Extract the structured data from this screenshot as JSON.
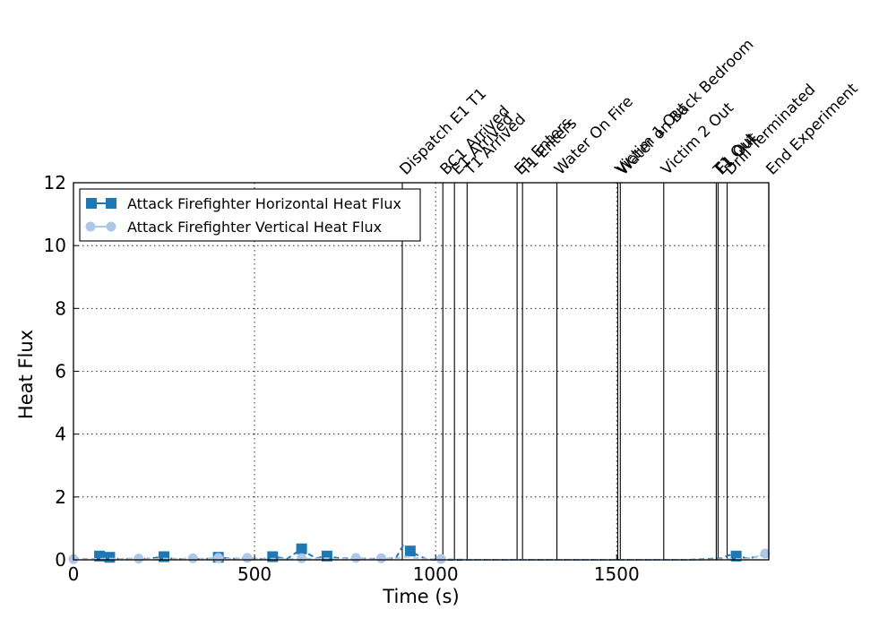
{
  "chart_data": {
    "type": "line",
    "xlabel": "Time (s)",
    "ylabel": "Heat Flux",
    "xlim": [
      0,
      1920
    ],
    "ylim": [
      0,
      12
    ],
    "xticks": [
      0,
      500,
      1000,
      1500
    ],
    "yticks": [
      0,
      2,
      4,
      6,
      8,
      10,
      12
    ],
    "grid": true,
    "legend": "top-left",
    "events": [
      {
        "label": "Dispatch E1 T1",
        "t": 908
      },
      {
        "label": "BC1 Arrived",
        "t": 1020
      },
      {
        "label": "E1 Arrived",
        "t": 1052
      },
      {
        "label": "T1 Arrived",
        "t": 1087
      },
      {
        "label": "E1 Enters",
        "t": 1225
      },
      {
        "label": "T1 Enters",
        "t": 1240
      },
      {
        "label": "Water On Fire",
        "t": 1335
      },
      {
        "label": "Victim 1 Out",
        "t": 1503
      },
      {
        "label": "Water on Back Bedroom",
        "t": 1510
      },
      {
        "label": "Victim 2 Out",
        "t": 1630
      },
      {
        "label": "T1 Out",
        "t": 1775
      },
      {
        "label": "E1 Out",
        "t": 1780
      },
      {
        "label": "Drill Terminated",
        "t": 1805
      },
      {
        "label": "End Experiment",
        "t": 1920
      }
    ],
    "series": [
      {
        "name": "Attack Firefighter Horizontal Heat Flux",
        "color": "#1f77b4",
        "marker": "square",
        "points": [
          [
            0,
            0.05
          ],
          [
            30,
            0.02
          ],
          [
            60,
            0.03
          ],
          [
            72,
            0.12
          ],
          [
            100,
            0.08
          ],
          [
            130,
            0.02
          ],
          [
            170,
            0.02
          ],
          [
            200,
            0.03
          ],
          [
            250,
            0.1
          ],
          [
            280,
            0.02
          ],
          [
            320,
            0.04
          ],
          [
            360,
            0.02
          ],
          [
            400,
            0.08
          ],
          [
            440,
            0.03
          ],
          [
            480,
            0.06
          ],
          [
            520,
            0.02
          ],
          [
            550,
            0.1
          ],
          [
            590,
            0.03
          ],
          [
            630,
            0.35
          ],
          [
            650,
            0.18
          ],
          [
            670,
            0.05
          ],
          [
            700,
            0.12
          ],
          [
            740,
            0.04
          ],
          [
            780,
            0.06
          ],
          [
            820,
            0.03
          ],
          [
            860,
            0.04
          ],
          [
            890,
            0.05
          ],
          [
            910,
            0.45
          ],
          [
            930,
            0.28
          ],
          [
            950,
            0.15
          ],
          [
            975,
            0.02
          ],
          [
            1000,
            0.0
          ],
          [
            1100,
            0.0
          ],
          [
            1200,
            0.0
          ],
          [
            1300,
            0.0
          ],
          [
            1400,
            0.0
          ],
          [
            1500,
            0.0
          ],
          [
            1600,
            0.0
          ],
          [
            1700,
            0.0
          ],
          [
            1790,
            0.05
          ],
          [
            1810,
            0.15
          ],
          [
            1830,
            0.12
          ],
          [
            1860,
            0.05
          ],
          [
            1890,
            0.1
          ],
          [
            1920,
            0.22
          ]
        ],
        "marker_every": [
          [
            72,
            0.12
          ],
          [
            100,
            0.08
          ],
          [
            250,
            0.1
          ],
          [
            400,
            0.08
          ],
          [
            550,
            0.1
          ],
          [
            630,
            0.35
          ],
          [
            700,
            0.12
          ],
          [
            930,
            0.28
          ],
          [
            1830,
            0.12
          ]
        ]
      },
      {
        "name": "Attack Firefighter Vertical Heat Flux",
        "color": "#aec7e8",
        "marker": "circle",
        "points": [
          [
            0,
            0.02
          ],
          [
            40,
            0.02
          ],
          [
            90,
            0.04
          ],
          [
            130,
            0.03
          ],
          [
            170,
            0.05
          ],
          [
            210,
            0.02
          ],
          [
            250,
            0.04
          ],
          [
            290,
            0.02
          ],
          [
            320,
            0.05
          ],
          [
            360,
            0.03
          ],
          [
            400,
            0.06
          ],
          [
            440,
            0.02
          ],
          [
            480,
            0.06
          ],
          [
            520,
            0.02
          ],
          [
            560,
            0.04
          ],
          [
            600,
            0.02
          ],
          [
            630,
            0.05
          ],
          [
            660,
            0.03
          ],
          [
            700,
            0.05
          ],
          [
            740,
            0.02
          ],
          [
            780,
            0.06
          ],
          [
            820,
            0.02
          ],
          [
            850,
            0.05
          ],
          [
            880,
            0.03
          ],
          [
            920,
            0.1
          ],
          [
            960,
            0.04
          ],
          [
            1000,
            0.02
          ],
          [
            1020,
            0.03
          ],
          [
            1100,
            0.0
          ],
          [
            1300,
            0.0
          ],
          [
            1500,
            0.0
          ],
          [
            1700,
            0.0
          ],
          [
            1800,
            0.02
          ],
          [
            1850,
            0.03
          ],
          [
            1880,
            0.08
          ],
          [
            1910,
            0.2
          ],
          [
            1920,
            0.28
          ]
        ],
        "marker_every": [
          [
            0,
            0.02
          ],
          [
            180,
            0.04
          ],
          [
            330,
            0.05
          ],
          [
            400,
            0.06
          ],
          [
            480,
            0.06
          ],
          [
            630,
            0.05
          ],
          [
            780,
            0.06
          ],
          [
            850,
            0.05
          ],
          [
            1015,
            0.03
          ],
          [
            1910,
            0.2
          ]
        ]
      }
    ]
  }
}
